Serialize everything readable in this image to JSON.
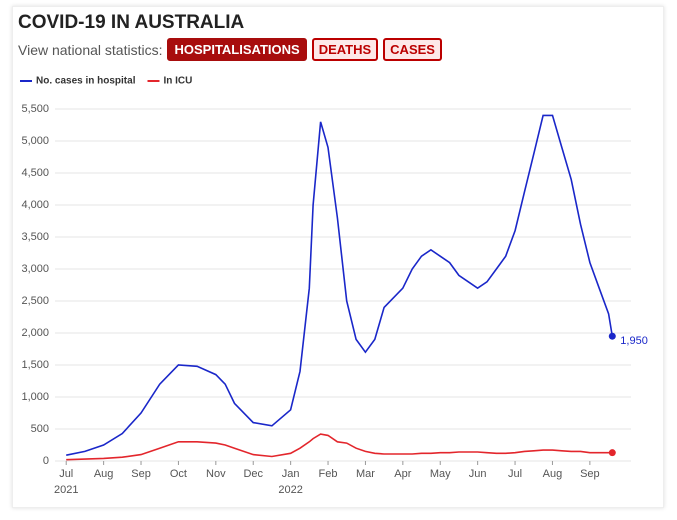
{
  "chart_data": {
    "type": "line",
    "title": "COVID-19 IN AUSTRALIA",
    "subtitle": "View national statistics:",
    "buttons": [
      "HOSPITALISATIONS",
      "DEATHS",
      "CASES"
    ],
    "x": [
      0,
      0.5,
      1,
      1.5,
      2,
      2.5,
      3,
      3.5,
      4,
      4.25,
      4.5,
      5,
      5.5,
      6,
      6.25,
      6.5,
      6.6,
      6.8,
      7,
      7.25,
      7.5,
      7.75,
      8,
      8.25,
      8.5,
      9,
      9.25,
      9.5,
      9.75,
      10,
      10.25,
      10.5,
      10.75,
      11,
      11.25,
      11.5,
      11.75,
      12,
      12.25,
      12.5,
      12.75,
      13,
      13.25,
      13.5,
      13.75,
      14,
      14.25,
      14.5,
      14.6
    ],
    "series": [
      {
        "name": "No. cases in hospital",
        "color": "#1a27c9",
        "values": [
          90,
          150,
          250,
          430,
          750,
          1200,
          1500,
          1480,
          1350,
          1200,
          900,
          600,
          550,
          800,
          1400,
          2700,
          4000,
          5300,
          4900,
          3800,
          2500,
          1900,
          1700,
          1900,
          2400,
          2700,
          3000,
          3200,
          3300,
          3200,
          3100,
          2900,
          2800,
          2700,
          2800,
          3000,
          3200,
          3600,
          4200,
          4800,
          5400,
          5400,
          4900,
          4400,
          3700,
          3100,
          2700,
          2300,
          1950
        ],
        "value_labels": [
          null,
          null,
          null,
          null,
          null,
          null,
          null,
          null,
          null,
          null,
          null,
          null,
          null,
          null,
          null,
          null,
          null,
          null,
          null,
          null,
          null,
          null,
          null,
          null,
          null,
          null,
          null,
          null,
          null,
          null,
          null,
          null,
          null,
          null,
          null,
          null,
          null,
          null,
          null,
          null,
          null,
          null,
          null,
          null,
          null,
          null,
          null,
          null,
          "1,950"
        ]
      },
      {
        "name": "In ICU",
        "color": "#e3262c",
        "values": [
          20,
          30,
          40,
          60,
          100,
          200,
          300,
          300,
          280,
          250,
          200,
          100,
          70,
          120,
          200,
          300,
          350,
          420,
          400,
          300,
          280,
          200,
          150,
          120,
          110,
          110,
          110,
          120,
          120,
          130,
          130,
          140,
          140,
          140,
          130,
          120,
          120,
          130,
          150,
          160,
          170,
          170,
          160,
          150,
          150,
          130,
          130,
          130,
          130
        ]
      }
    ],
    "xlim": [
      -0.3,
      15.1
    ],
    "xticks": [
      {
        "value": 0,
        "label": "Jul"
      },
      {
        "value": 1,
        "label": "Aug"
      },
      {
        "value": 2,
        "label": "Sep"
      },
      {
        "value": 3,
        "label": "Oct"
      },
      {
        "value": 4,
        "label": "Nov"
      },
      {
        "value": 5,
        "label": "Dec"
      },
      {
        "value": 6,
        "label": "Jan"
      },
      {
        "value": 7,
        "label": "Feb"
      },
      {
        "value": 8,
        "label": "Mar"
      },
      {
        "value": 9,
        "label": "Apr"
      },
      {
        "value": 10,
        "label": "May"
      },
      {
        "value": 11,
        "label": "Jun"
      },
      {
        "value": 12,
        "label": "Jul"
      },
      {
        "value": 13,
        "label": "Aug"
      },
      {
        "value": 14,
        "label": "Sep"
      }
    ],
    "year_labels": [
      {
        "value": 0,
        "label": "2021"
      },
      {
        "value": 6,
        "label": "2022"
      }
    ],
    "ylim": [
      0,
      5500
    ],
    "yticks": [
      0,
      500,
      {
        "value": 1000,
        "label": "1,000"
      },
      {
        "value": 1500,
        "label": "1,500"
      },
      {
        "value": 2000,
        "label": "2,000"
      },
      {
        "value": 2500,
        "label": "2,500"
      },
      {
        "value": 3000,
        "label": "3,000"
      },
      {
        "value": 3500,
        "label": "3,500"
      },
      {
        "value": 4000,
        "label": "4,000"
      },
      {
        "value": 4500,
        "label": "4,500"
      },
      {
        "value": 5000,
        "label": "5,000"
      },
      {
        "value": 5500,
        "label": "5,500"
      }
    ],
    "grid": true
  }
}
